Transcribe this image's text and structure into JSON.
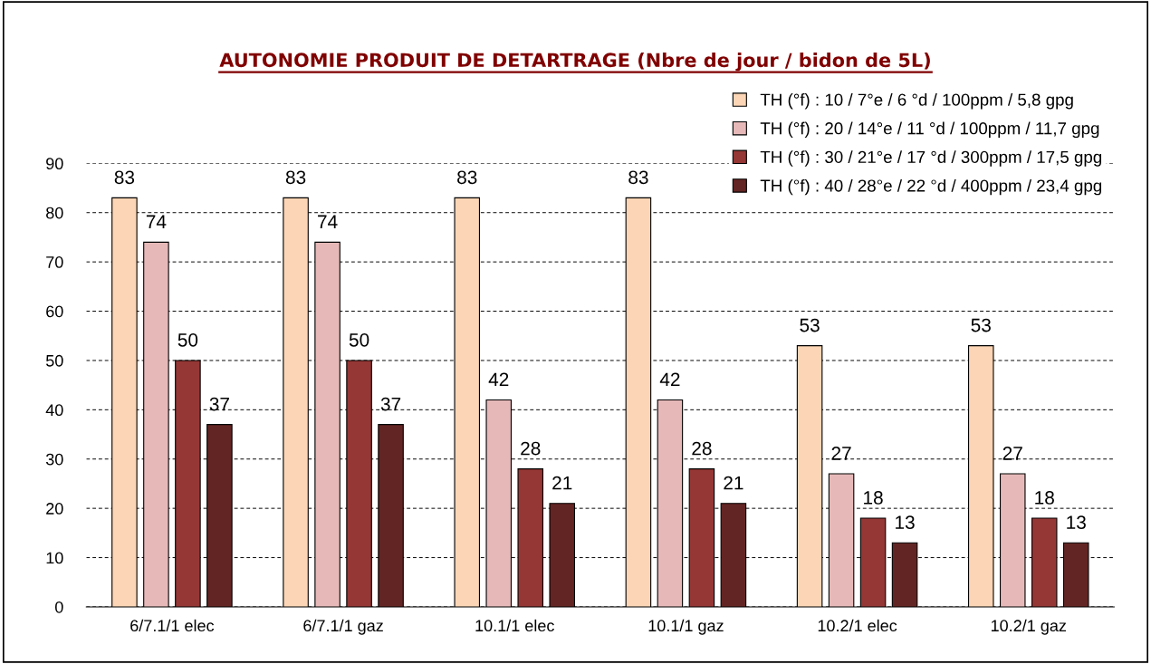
{
  "chart_data": {
    "type": "bar",
    "title": "AUTONOMIE PRODUIT DE DETARTRAGE (Nbre de jour / bidon de 5L)",
    "categories": [
      "6/7.1/1 elec",
      "6/7.1/1 gaz",
      "10.1/1 elec",
      "10.1/1 gaz",
      "10.2/1 elec",
      "10.2/1 gaz"
    ],
    "series": [
      {
        "name": "TH (°f) : 10 / 7°e / 6 °d / 100ppm / 5,8 gpg",
        "color": "#fbd5b5",
        "values": [
          83,
          83,
          83,
          83,
          53,
          53
        ]
      },
      {
        "name": "TH (°f) : 20 / 14°e / 11 °d / 100ppm / 11,7 gpg",
        "color": "#e6b9b8",
        "values": [
          74,
          74,
          42,
          42,
          27,
          27
        ]
      },
      {
        "name": "TH (°f) : 30 / 21°e / 17 °d / 300ppm / 17,5 gpg",
        "color": "#953735",
        "values": [
          50,
          50,
          28,
          28,
          18,
          18
        ]
      },
      {
        "name": "TH (°f) : 40 / 28°e / 22 °d / 400ppm / 23,4 gpg",
        "color": "#632523",
        "values": [
          37,
          37,
          21,
          21,
          13,
          13
        ]
      }
    ],
    "ylim": [
      0,
      90
    ],
    "yticks": [
      0,
      10,
      20,
      30,
      40,
      50,
      60,
      70,
      80,
      90
    ],
    "grid": "y",
    "legend": "top right",
    "data_labels": true
  }
}
